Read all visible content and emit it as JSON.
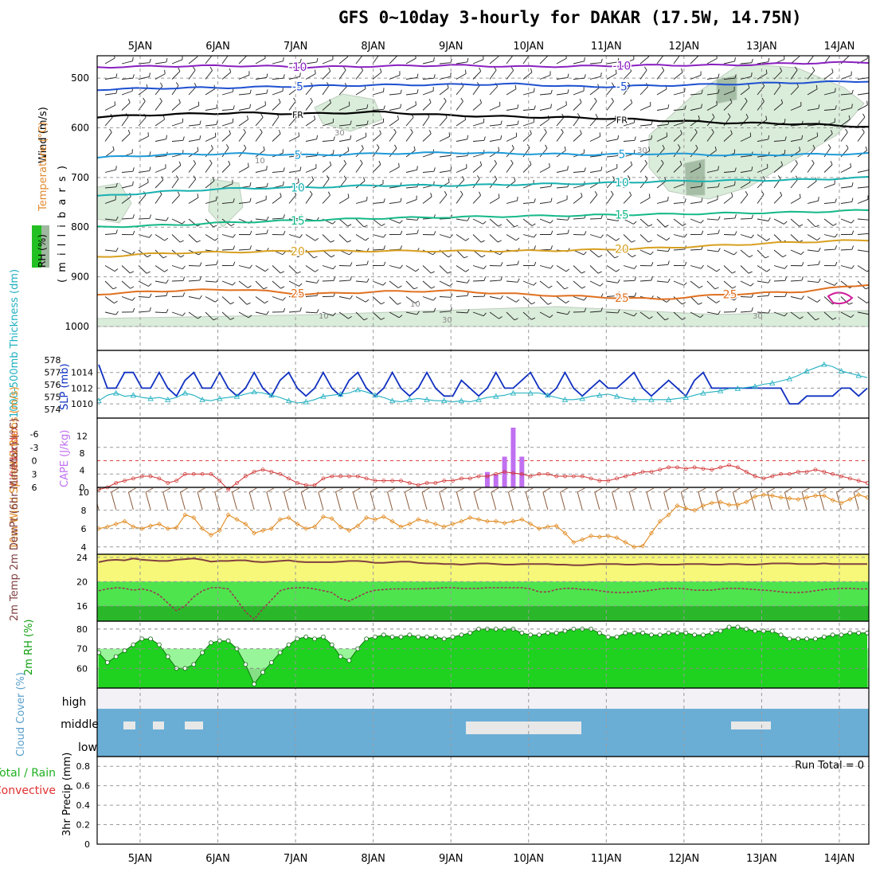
{
  "title": "GFS 0~10day 3-hourly for DAKAR (17.5W, 14.75N)",
  "colors": {
    "frame": "#000000",
    "grid": "#888888",
    "slp": "#1030c0",
    "thick": "#20b0c0",
    "cape": "#c070f0",
    "li": "#d03030",
    "wind10": "#e08a20",
    "barb": "#8a5a3a",
    "temp": "#804040",
    "rhfill": "#22cc22",
    "cloud": "#6aaed6",
    "cloudbg": "#f3f0f6"
  },
  "chart_data": [
    {
      "type": "heatmap",
      "name": "upper-air cross-section",
      "title": "GFS 0~10day 3-hourly for DAKAR (17.5W, 14.75N)",
      "xlabel": "",
      "ylabel": "( m i l l i b a r s )",
      "y_tick_labels": [
        "500",
        "600",
        "700",
        "800",
        "900",
        "1000"
      ],
      "y_ticks": [
        500,
        600,
        700,
        800,
        900,
        1000
      ],
      "ylim": [
        455,
        1000
      ],
      "x_tick_labels": [
        "5JAN",
        "6JAN",
        "7JAN",
        "8JAN",
        "9JAN",
        "10JAN",
        "11JAN",
        "12JAN",
        "13JAN",
        "14JAN"
      ],
      "side_labels": {
        "wind": "Wind (m/s)",
        "temp": "Temperature (°C)",
        "rh": "RH (%)"
      },
      "isotherms": [
        {
          "label": "-10",
          "level_mb": [
            478,
            476,
            475,
            478,
            476,
            474,
            477,
            476,
            474,
            474,
            470,
            468
          ],
          "color": "#8a20c0",
          "marks": [
            "-10",
            "-10"
          ]
        },
        {
          "label": "-5",
          "level_mb": [
            523,
            520,
            519,
            516,
            514,
            513,
            512,
            518,
            515,
            512,
            509,
            506
          ],
          "color": "#1e50d0",
          "marks": [
            "-5",
            "-5"
          ]
        },
        {
          "label": "FR",
          "level_mb": [
            578,
            573,
            570,
            572,
            568,
            575,
            578,
            580,
            585,
            590,
            592,
            598
          ],
          "color": "#000000",
          "marks": [
            "FR",
            "FR"
          ]
        },
        {
          "label": "5",
          "level_mb": [
            660,
            654,
            652,
            655,
            652,
            650,
            652,
            654,
            652,
            655,
            654,
            652
          ],
          "color": "#1e9ad8",
          "marks": [
            "5",
            "5"
          ]
        },
        {
          "label": "10",
          "level_mb": [
            738,
            728,
            722,
            720,
            716,
            716,
            714,
            712,
            708,
            706,
            705,
            700
          ],
          "color": "#18b0b0",
          "marks": [
            "10",
            "10"
          ]
        },
        {
          "label": "15",
          "level_mb": [
            800,
            796,
            790,
            786,
            782,
            780,
            778,
            776,
            774,
            772,
            770,
            766
          ],
          "color": "#14b888",
          "marks": [
            "15",
            "15"
          ]
        },
        {
          "label": "20",
          "level_mb": [
            860,
            852,
            850,
            848,
            848,
            848,
            848,
            846,
            842,
            836,
            830,
            826
          ],
          "color": "#d8a020",
          "marks": [
            "20",
            "20"
          ]
        },
        {
          "label": "25",
          "level_mb": [
            935,
            928,
            925,
            935,
            930,
            928,
            935,
            940,
            945,
            935,
            930,
            915
          ],
          "color": "#e07020",
          "marks": [
            "25",
            "25",
            "25"
          ]
        }
      ],
      "rh_contours": [
        "30",
        "10",
        "30",
        "10",
        "30",
        "10",
        "30"
      ]
    },
    {
      "type": "line",
      "name": "thickness and slp",
      "ylabel_left": "1000-500mb Thickness (dm)",
      "ylabel_right": "SLP (mb)",
      "left_ticks": [
        "578",
        "577",
        "576",
        "575",
        "574"
      ],
      "right_ticks": [
        "1014",
        "1012",
        "1010"
      ],
      "ylim_slp": [
        1009,
        1016
      ],
      "series": [
        {
          "name": "SLP (mb)",
          "values": [
            1015,
            1012,
            1012,
            1014,
            1014,
            1012,
            1012,
            1014,
            1012,
            1011,
            1013,
            1014,
            1012,
            1012,
            1014,
            1012,
            1011,
            1012,
            1014,
            1012,
            1011,
            1013,
            1014,
            1012,
            1011,
            1012,
            1014,
            1012,
            1011,
            1013,
            1014,
            1012,
            1011,
            1012,
            1014,
            1012,
            1011,
            1012,
            1014,
            1012,
            1011,
            1011,
            1013,
            1012,
            1011,
            1012,
            1014,
            1012,
            1012,
            1013,
            1014,
            1012,
            1011,
            1012,
            1014,
            1012,
            1011,
            1012,
            1013,
            1012,
            1012,
            1013,
            1014,
            1012,
            1011,
            1012,
            1013,
            1012,
            1011,
            1013,
            1014,
            1012,
            1012,
            1012,
            1012,
            1012,
            1012,
            1012,
            1012,
            1012,
            1010,
            1010,
            1011,
            1011,
            1011,
            1011,
            1012,
            1012,
            1011,
            1012
          ]
        },
        {
          "name": "1000-500mb Thickness (dm)",
          "values": [
            574.5,
            575,
            575.2,
            574.9,
            575,
            574.8,
            574.7,
            574.8,
            574.6,
            574.8,
            575.2,
            575,
            574.6,
            574.5,
            574.7,
            574.8,
            574.9,
            575.1,
            575.3,
            575.2,
            575,
            574.8,
            574.5,
            574.3,
            574.4,
            574.6,
            574.9,
            575,
            575.1,
            575.2,
            575.5,
            575.3,
            575,
            574.8,
            574.5,
            574.4,
            574.6,
            574.7,
            574.6,
            574.5,
            574.5,
            574.4,
            574.5,
            574.4,
            574.6,
            574.8,
            574.9,
            575,
            575.2,
            575.2,
            575.2,
            575.2,
            575.0,
            574.8,
            574.6,
            574.6,
            574.7,
            574.9,
            575.0,
            575.1,
            574.9,
            574.7,
            574.6,
            574.6,
            574.6,
            574.6,
            574.6,
            574.7,
            574.8,
            575.0,
            575.2,
            575.3,
            575.4,
            575.6,
            575.6,
            575.7,
            575.8,
            576.0,
            576.1,
            576.3,
            576.5,
            576.8,
            577.2,
            577.5,
            577.8,
            577.6,
            577.2,
            577.0,
            576.8,
            576.6
          ]
        }
      ]
    },
    {
      "type": "bar",
      "name": "lifted index and cape",
      "ylabel_left": "Lifted Index",
      "ylabel_right": "CAPE (J/kg)",
      "li_ticks": [
        "-6",
        "-3",
        "0",
        "3",
        "6"
      ],
      "cape_ticks": [
        "12",
        "8",
        "4",
        "0"
      ],
      "cape_values": [
        3.6,
        3.0,
        7.2,
        14.0,
        7.2
      ],
      "cape_start_index": 45,
      "li_values": [
        6.5,
        6,
        5,
        4.5,
        4,
        3.5,
        3.5,
        4,
        5,
        4.5,
        3,
        3,
        3,
        3,
        4.5,
        6.5,
        5,
        3.5,
        2.5,
        2,
        2.5,
        3,
        4,
        5,
        5.5,
        5.5,
        4,
        3.5,
        3.5,
        3.5,
        3.5,
        4,
        4.5,
        4.5,
        4.5,
        4.5,
        5,
        5.5,
        5,
        5,
        4.5,
        4.5,
        4,
        4,
        3.5,
        3.5,
        3,
        2.5,
        2.8,
        3,
        3.5,
        3,
        3,
        3.5,
        3.5,
        3.5,
        3.5,
        4,
        4.5,
        4.5,
        4,
        3.5,
        3,
        2.5,
        2.5,
        2,
        1.5,
        1.5,
        1.8,
        1.5,
        1.8,
        2,
        1.5,
        1,
        1.5,
        2.5,
        3.5,
        4,
        3.5,
        3,
        3,
        2.5,
        2.5,
        2,
        2.5,
        3,
        3.5,
        4,
        4.5,
        5
      ]
    },
    {
      "type": "line",
      "name": "10m wind speed",
      "ylabel": "10m Wind Speed & Barbs (m/s)",
      "y_ticks": [
        "10",
        "8",
        "6",
        "4"
      ],
      "ylim": [
        3.2,
        10.5
      ],
      "values": [
        6,
        6.2,
        6.5,
        6.8,
        6.2,
        6,
        6.3,
        6.5,
        6,
        6.1,
        7.5,
        7.2,
        6,
        5.3,
        5.8,
        7.5,
        7,
        6.5,
        5.5,
        5.8,
        6,
        7,
        7.2,
        6.5,
        6,
        6.2,
        7.3,
        7.1,
        6.2,
        5.8,
        6.3,
        7.2,
        7,
        7.3,
        6.8,
        6.2,
        6.5,
        7,
        6.8,
        6.5,
        6.2,
        6.5,
        6.8,
        7.2,
        7,
        6.8,
        6.8,
        6.6,
        6.8,
        7,
        6.5,
        6,
        6.2,
        6.3,
        5.5,
        4.5,
        4.8,
        5.2,
        5.1,
        5.2,
        5,
        4.5,
        4.0,
        4.1,
        5.5,
        6.8,
        7.5,
        8.5,
        8.2,
        8,
        8.5,
        8.8,
        8.9,
        8.6,
        8.6,
        8.9,
        9.5,
        9.7,
        9.6,
        9.4,
        9.3,
        9.2,
        9.4,
        9.6,
        9.6,
        9.1,
        8.8,
        9.2,
        9.7,
        9.4
      ]
    },
    {
      "type": "area",
      "name": "2m temperature and dewpoint",
      "ylabel": "2m Temp 2m DewPt (6hr Min/Max) (°C)",
      "y_ticks": [
        "24",
        "20",
        "16"
      ],
      "ylim": [
        13.5,
        24.5
      ],
      "temp_values": [
        23.2,
        23.5,
        23.6,
        23.5,
        23.8,
        23.6,
        23.5,
        23.4,
        23.4,
        23.6,
        23.7,
        23.8,
        23.6,
        23.3,
        23.4,
        23.4,
        23.5,
        23.5,
        23.3,
        23.2,
        23.3,
        23.4,
        23.5,
        23.3,
        23.2,
        23.2,
        23.2,
        23.2,
        23.3,
        23.4,
        23.4,
        23.3,
        23.1,
        23.1,
        23.2,
        23.3,
        23.3,
        23.1,
        23.0,
        23.0,
        22.9,
        22.9,
        22.8,
        22.9,
        23.0,
        23.0,
        22.9,
        22.8,
        22.8,
        22.9,
        22.9,
        22.9,
        22.9,
        22.8,
        22.8,
        22.7,
        22.7,
        22.8,
        22.9,
        22.9,
        22.9,
        22.8,
        22.8,
        22.9,
        22.9,
        22.8,
        22.8,
        22.8,
        22.9,
        22.9,
        22.9,
        22.8,
        22.8,
        22.9,
        22.9,
        22.8,
        22.8,
        22.9,
        23.0,
        23.0,
        23.0,
        22.9,
        22.9,
        22.9,
        23.0,
        22.9,
        22.9,
        22.9,
        22.9,
        22.9
      ],
      "dewpt_values": [
        18.5,
        18.8,
        19.0,
        18.9,
        18.6,
        18.8,
        18.5,
        17.8,
        16.5,
        15.2,
        16.0,
        17.5,
        18.5,
        19.0,
        19.0,
        18.8,
        17.0,
        15.0,
        13.8,
        15.5,
        17.0,
        18.5,
        18.9,
        19.0,
        19.0,
        18.8,
        18.5,
        18.2,
        17.2,
        16.8,
        17.5,
        18.2,
        18.6,
        18.7,
        18.8,
        18.8,
        18.8,
        18.8,
        18.9,
        18.9,
        19.0,
        19.0,
        18.9,
        18.9,
        18.9,
        19.0,
        19.0,
        19.0,
        19.0,
        19.0,
        18.8,
        18.3,
        18.3,
        18.7,
        18.9,
        18.9,
        18.7,
        18.7,
        18.5,
        18.3,
        18.2,
        18.2,
        18.3,
        18.4,
        18.6,
        18.8,
        18.9,
        18.9,
        18.8,
        18.6,
        18.6,
        18.6,
        18.8,
        18.9,
        18.9,
        18.8,
        18.7,
        18.6,
        18.5,
        18.3,
        18.2,
        18.2,
        18.3,
        18.5,
        18.7,
        18.8,
        18.9,
        18.9,
        18.8,
        18.8
      ]
    },
    {
      "type": "area",
      "name": "2m relative humidity",
      "ylabel": "2m RH (%)",
      "y_ticks": [
        "80",
        "70",
        "60"
      ],
      "ylim": [
        50,
        84
      ],
      "values": [
        68,
        63,
        66,
        69,
        72,
        75,
        75,
        72,
        66,
        60,
        60,
        62,
        68,
        73,
        74,
        74,
        70,
        62,
        52,
        58,
        63,
        68,
        72,
        75,
        76,
        75,
        76,
        72,
        66,
        64,
        70,
        75,
        76,
        77,
        76,
        76,
        77,
        76,
        76,
        76,
        75,
        76,
        77,
        78,
        80,
        80,
        80,
        80,
        80,
        78,
        77,
        77,
        78,
        78,
        79,
        80,
        80,
        80,
        78,
        76,
        76,
        78,
        78,
        78,
        77,
        77,
        78,
        78,
        78,
        77,
        77,
        78,
        79,
        81,
        81,
        80,
        79,
        79,
        79,
        77,
        75,
        75,
        75,
        75,
        76,
        77,
        77,
        78,
        78,
        78
      ]
    },
    {
      "type": "area",
      "name": "cloud cover",
      "ylabel": "Cloud Cover (%)",
      "levels": [
        "high",
        "middle",
        "low"
      ]
    },
    {
      "type": "bar",
      "name": "3hr precipitation",
      "ylabel": "3hr Precip (mm)",
      "side_labels": [
        "Total / Rain",
        "Convective"
      ],
      "y_ticks": [
        "0.8",
        "0.6",
        "0.4",
        "0.2",
        "0"
      ],
      "ylim": [
        0,
        0.9
      ],
      "run_total_label": "Run Total = 0",
      "values": []
    }
  ]
}
